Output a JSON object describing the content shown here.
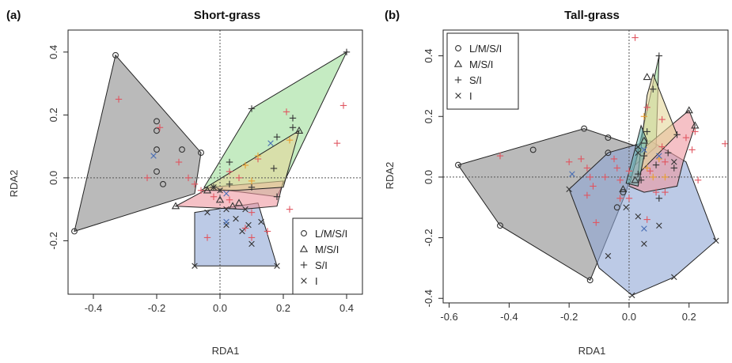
{
  "chart_data": [
    {
      "type": "scatter",
      "panel_label": "(a)",
      "title": "Short-grass",
      "xlabel": "RDA1",
      "ylabel": "RDA2",
      "xlim": [
        -0.48,
        0.45
      ],
      "ylim": [
        -0.37,
        0.47
      ],
      "xticks": [
        -0.4,
        -0.2,
        0.0,
        0.2,
        0.4
      ],
      "xtick_labels": [
        "-0.4",
        "-0.2",
        "0.0",
        "0.2",
        "0.4"
      ],
      "yticks": [
        -0.2,
        0.0,
        0.2,
        0.4
      ],
      "ytick_labels": [
        "-0.2",
        "0.0",
        "0.2",
        "0.4"
      ],
      "reference_lines": {
        "x": 0,
        "y": 0,
        "style": "dotted"
      },
      "legend": {
        "placement": "bottom-right",
        "entries": [
          {
            "symbol": "circle",
            "label": "L/M/S/I"
          },
          {
            "symbol": "triangle",
            "label": "M/S/I"
          },
          {
            "symbol": "plus",
            "label": "S/I"
          },
          {
            "symbol": "cross",
            "label": "I"
          }
        ]
      },
      "hulls": [
        {
          "group": "L/M/S/I",
          "fill": "#8c8c8c",
          "points": [
            [
              -0.33,
              0.39
            ],
            [
              -0.06,
              0.08
            ],
            [
              -0.08,
              -0.05
            ],
            [
              -0.46,
              -0.17
            ]
          ]
        },
        {
          "group": "I",
          "fill": "#8fa6d6",
          "points": [
            [
              -0.08,
              -0.11
            ],
            [
              0.12,
              -0.08
            ],
            [
              0.18,
              -0.28
            ],
            [
              -0.08,
              -0.28
            ]
          ]
        },
        {
          "group": "S/I",
          "fill": "#9fdd9a",
          "points": [
            [
              0.1,
              0.22
            ],
            [
              0.4,
              0.4
            ],
            [
              0.18,
              -0.06
            ],
            [
              -0.05,
              -0.03
            ]
          ]
        },
        {
          "group": "M/S/I",
          "fill": "#ee98a0",
          "points": [
            [
              -0.14,
              -0.09
            ],
            [
              -0.03,
              -0.03
            ],
            [
              0.2,
              -0.01
            ],
            [
              0.18,
              -0.09
            ],
            [
              0.07,
              -0.1
            ]
          ]
        },
        {
          "group": "M/S/I",
          "fill": "#e4d79a",
          "points": [
            [
              -0.06,
              -0.04
            ],
            [
              0.25,
              0.15
            ],
            [
              0.2,
              -0.03
            ],
            [
              0.05,
              -0.04
            ]
          ]
        }
      ],
      "series": [
        {
          "symbol": "circle",
          "color": "#333333",
          "points": [
            [
              -0.33,
              0.39
            ],
            [
              -0.2,
              0.18
            ],
            [
              -0.2,
              0.15
            ],
            [
              -0.2,
              0.09
            ],
            [
              -0.12,
              0.09
            ],
            [
              -0.06,
              0.08
            ],
            [
              -0.2,
              0.02
            ],
            [
              -0.18,
              -0.02
            ],
            [
              -0.46,
              -0.17
            ]
          ]
        },
        {
          "symbol": "triangle",
          "color": "#333333",
          "points": [
            [
              0.25,
              0.15
            ],
            [
              -0.14,
              -0.09
            ],
            [
              -0.04,
              -0.04
            ],
            [
              0.0,
              -0.07
            ],
            [
              0.04,
              -0.09
            ],
            [
              0.06,
              -0.08
            ]
          ]
        },
        {
          "symbol": "plus",
          "color": "#333333",
          "points": [
            [
              0.4,
              0.4
            ],
            [
              0.1,
              0.22
            ],
            [
              0.23,
              0.19
            ],
            [
              0.23,
              0.16
            ],
            [
              0.18,
              0.13
            ],
            [
              0.03,
              0.05
            ],
            [
              0.17,
              0.03
            ],
            [
              0.1,
              -0.03
            ],
            [
              0.03,
              -0.02
            ],
            [
              -0.02,
              -0.03
            ],
            [
              0.18,
              -0.06
            ]
          ]
        },
        {
          "symbol": "cross",
          "color": "#333333",
          "points": [
            [
              -0.02,
              -0.03
            ],
            [
              0.0,
              -0.04
            ],
            [
              -0.04,
              -0.11
            ],
            [
              0.02,
              -0.1
            ],
            [
              0.05,
              -0.13
            ],
            [
              0.08,
              -0.1
            ],
            [
              0.07,
              -0.17
            ],
            [
              0.1,
              -0.21
            ],
            [
              0.13,
              -0.14
            ],
            [
              0.09,
              -0.15
            ],
            [
              0.02,
              -0.15
            ],
            [
              -0.08,
              -0.28
            ],
            [
              0.18,
              -0.28
            ]
          ]
        },
        {
          "symbol": "plus",
          "color": "#e05560",
          "points": [
            [
              -0.32,
              0.25
            ],
            [
              -0.19,
              0.16
            ],
            [
              -0.23,
              0.0
            ],
            [
              -0.13,
              0.05
            ],
            [
              -0.1,
              0.0
            ],
            [
              -0.08,
              -0.02
            ],
            [
              -0.06,
              -0.04
            ],
            [
              -0.02,
              -0.06
            ],
            [
              0.06,
              0.0
            ],
            [
              0.03,
              0.02
            ],
            [
              0.12,
              0.06
            ],
            [
              0.37,
              0.11
            ],
            [
              0.39,
              0.23
            ],
            [
              0.21,
              0.21
            ],
            [
              0.22,
              -0.1
            ],
            [
              0.03,
              -0.07
            ],
            [
              0.08,
              -0.16
            ],
            [
              0.1,
              -0.19
            ],
            [
              0.1,
              -0.11
            ],
            [
              -0.04,
              -0.19
            ],
            [
              0.15,
              -0.17
            ]
          ]
        },
        {
          "symbol": "plus",
          "color": "#e8a030",
          "points": [
            [
              0.22,
              0.12
            ],
            [
              0.12,
              0.07
            ],
            [
              0.08,
              0.04
            ],
            [
              0.1,
              -0.01
            ]
          ]
        },
        {
          "symbol": "cross",
          "color": "#4a6fb5",
          "points": [
            [
              -0.21,
              0.07
            ],
            [
              0.16,
              0.11
            ],
            [
              0.02,
              -0.05
            ],
            [
              0.02,
              -0.14
            ]
          ]
        }
      ]
    },
    {
      "type": "scatter",
      "panel_label": "(b)",
      "title": "Tall-grass",
      "xlabel": "RDA1",
      "ylabel": "RDA2",
      "xlim": [
        -0.62,
        0.33
      ],
      "ylim": [
        -0.415,
        0.485
      ],
      "xticks": [
        -0.6,
        -0.4,
        -0.2,
        0.0,
        0.2
      ],
      "xtick_labels": [
        "-0.6",
        "-0.4",
        "-0.2",
        "0.0",
        "0.2"
      ],
      "yticks": [
        -0.4,
        -0.2,
        0.0,
        0.2,
        0.4
      ],
      "ytick_labels": [
        "-0.4",
        "-0.2",
        "0.0",
        "0.2",
        "0.4"
      ],
      "reference_lines": {
        "x": 0,
        "y": 0,
        "style": "dotted"
      },
      "legend": {
        "placement": "top-left",
        "entries": [
          {
            "symbol": "circle",
            "label": "L/M/S/I"
          },
          {
            "symbol": "triangle",
            "label": "M/S/I"
          },
          {
            "symbol": "plus",
            "label": "S/I"
          },
          {
            "symbol": "cross",
            "label": "I"
          }
        ]
      },
      "hulls": [
        {
          "group": "L/M/S/I",
          "fill": "#8c8c8c",
          "points": [
            [
              -0.57,
              0.04
            ],
            [
              -0.15,
              0.16
            ],
            [
              0.03,
              0.1
            ],
            [
              -0.01,
              -0.05
            ],
            [
              -0.13,
              -0.34
            ],
            [
              -0.43,
              -0.16
            ]
          ]
        },
        {
          "group": "I",
          "fill": "#8fa6d6",
          "points": [
            [
              -0.2,
              -0.04
            ],
            [
              -0.07,
              0.08
            ],
            [
              0.07,
              0.12
            ],
            [
              0.19,
              0.05
            ],
            [
              0.29,
              -0.21
            ],
            [
              0.15,
              -0.33
            ],
            [
              0.01,
              -0.39
            ],
            [
              -0.1,
              -0.3
            ]
          ]
        },
        {
          "group": "S/I",
          "fill": "#9fdd9a",
          "points": [
            [
              0.02,
              0.04
            ],
            [
              0.1,
              0.4
            ],
            [
              0.09,
              0.1
            ]
          ]
        },
        {
          "group": "M/S/I",
          "fill": "#ee98a0",
          "points": [
            [
              0.03,
              0.08
            ],
            [
              0.2,
              0.22
            ],
            [
              0.22,
              0.17
            ],
            [
              0.18,
              0.05
            ],
            [
              0.16,
              -0.03
            ],
            [
              0.05,
              -0.05
            ],
            [
              0.0,
              -0.03
            ]
          ]
        },
        {
          "group": "M/S/I",
          "fill": "#e4d79a",
          "points": [
            [
              0.06,
              0.27
            ],
            [
              0.08,
              0.34
            ],
            [
              0.16,
              0.14
            ],
            [
              0.03,
              0.01
            ]
          ]
        },
        {
          "group": "S/I",
          "fill": "#6fb9b5",
          "points": [
            [
              0.04,
              0.17
            ],
            [
              0.06,
              0.12
            ],
            [
              0.03,
              -0.03
            ],
            [
              -0.01,
              -0.02
            ]
          ]
        }
      ],
      "series": [
        {
          "symbol": "circle",
          "color": "#333333",
          "points": [
            [
              -0.57,
              0.04
            ],
            [
              -0.32,
              0.09
            ],
            [
              -0.15,
              0.16
            ],
            [
              -0.07,
              0.13
            ],
            [
              -0.07,
              0.08
            ],
            [
              -0.43,
              -0.16
            ],
            [
              -0.13,
              -0.34
            ],
            [
              -0.02,
              -0.05
            ],
            [
              -0.04,
              -0.1
            ]
          ]
        },
        {
          "symbol": "triangle",
          "color": "#333333",
          "points": [
            [
              0.2,
              0.22
            ],
            [
              0.22,
              0.17
            ],
            [
              0.06,
              0.33
            ],
            [
              -0.02,
              -0.04
            ],
            [
              0.02,
              -0.01
            ],
            [
              0.05,
              0.12
            ]
          ]
        },
        {
          "symbol": "plus",
          "color": "#333333",
          "points": [
            [
              0.1,
              0.4
            ],
            [
              0.08,
              0.29
            ],
            [
              0.06,
              0.15
            ],
            [
              0.05,
              0.07
            ],
            [
              0.09,
              0.04
            ],
            [
              0.15,
              0.03
            ],
            [
              0.16,
              0.14
            ],
            [
              0.13,
              0.08
            ],
            [
              0.03,
              0.01
            ],
            [
              0.04,
              -0.01
            ],
            [
              0.1,
              -0.07
            ]
          ]
        },
        {
          "symbol": "cross",
          "color": "#333333",
          "points": [
            [
              -0.2,
              -0.04
            ],
            [
              0.03,
              0.1
            ],
            [
              0.15,
              0.05
            ],
            [
              0.29,
              -0.21
            ],
            [
              0.15,
              -0.33
            ],
            [
              0.01,
              -0.39
            ],
            [
              0.05,
              -0.22
            ],
            [
              -0.07,
              -0.26
            ],
            [
              -0.01,
              -0.1
            ],
            [
              0.03,
              -0.13
            ],
            [
              0.1,
              -0.16
            ],
            [
              0.03,
              0.08
            ]
          ]
        },
        {
          "symbol": "plus",
          "color": "#e05560",
          "points": [
            [
              0.02,
              0.46
            ],
            [
              -0.43,
              0.07
            ],
            [
              -0.2,
              0.05
            ],
            [
              -0.16,
              0.06
            ],
            [
              -0.14,
              0.03
            ],
            [
              -0.13,
              0.0
            ],
            [
              -0.12,
              -0.03
            ],
            [
              -0.08,
              0.0
            ],
            [
              -0.05,
              0.06
            ],
            [
              -0.04,
              0.03
            ],
            [
              -0.03,
              -0.01
            ],
            [
              0.0,
              0.02
            ],
            [
              0.07,
              0.02
            ],
            [
              0.12,
              0.05
            ],
            [
              0.11,
              0.1
            ],
            [
              0.19,
              0.13
            ],
            [
              0.22,
              0.15
            ],
            [
              0.21,
              0.09
            ],
            [
              0.23,
              -0.01
            ],
            [
              0.32,
              0.11
            ],
            [
              0.06,
              0.23
            ],
            [
              0.11,
              0.19
            ],
            [
              0.09,
              -0.05
            ],
            [
              0.12,
              -0.05
            ],
            [
              0.0,
              -0.07
            ],
            [
              -0.03,
              -0.07
            ],
            [
              -0.11,
              -0.15
            ],
            [
              0.06,
              -0.14
            ],
            [
              -0.14,
              -0.06
            ]
          ]
        },
        {
          "symbol": "plus",
          "color": "#e8a030",
          "points": [
            [
              0.05,
              0.2
            ],
            [
              0.06,
              0.03
            ],
            [
              0.1,
              0.06
            ],
            [
              0.12,
              0.0
            ],
            [
              0.08,
              0.0
            ]
          ]
        },
        {
          "symbol": "cross",
          "color": "#4a6fb5",
          "points": [
            [
              -0.19,
              0.01
            ],
            [
              0.05,
              0.09
            ],
            [
              0.1,
              0.07
            ],
            [
              0.05,
              -0.17
            ]
          ]
        }
      ]
    }
  ]
}
